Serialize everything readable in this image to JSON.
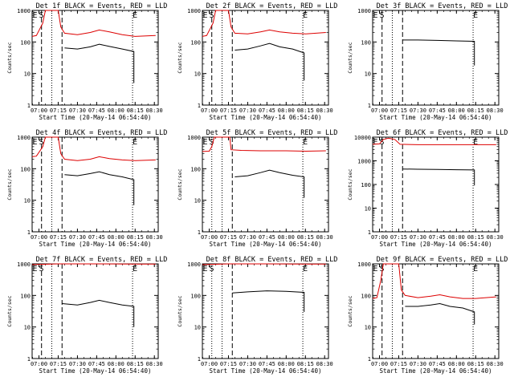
{
  "chart_data": {
    "type": "line",
    "y_scale": "log",
    "ylim": [
      1,
      1000
    ],
    "yticks": [
      "1",
      "10",
      "100",
      "1000"
    ],
    "ylabel": "Counts/sec",
    "xlabel": "Start Time (20-May-14 06:54:40)",
    "xlim": [
      "06:54:40",
      "08:33:00"
    ],
    "xticks": [
      "07:00",
      "07:15",
      "07:30",
      "07:45",
      "08:00",
      "08:15",
      "08:30"
    ],
    "colors": {
      "events": "#000000",
      "lld": "#dd0000"
    },
    "panels": [
      {
        "title": "Det 1f BLACK = Events, RED = LLD",
        "ytop": "1000",
        "vlines": [
          {
            "t": "07:02",
            "s": "dash"
          },
          {
            "t": "07:10",
            "s": "dot"
          },
          {
            "t": "07:18",
            "s": "dash"
          },
          {
            "t": "08:13",
            "s": "dot"
          }
        ],
        "marks": [
          {
            "t": "06:55",
            "text": "E"
          },
          {
            "t": "07:00",
            "text": "S"
          },
          {
            "t": "08:13",
            "text": "E"
          }
        ],
        "events": [
          [
            "07:20",
            65
          ],
          [
            "07:30",
            60
          ],
          [
            "07:40",
            70
          ],
          [
            "07:47",
            85
          ],
          [
            "07:55",
            72
          ],
          [
            "08:05",
            60
          ],
          [
            "08:14",
            50
          ],
          [
            "08:14",
            5
          ]
        ],
        "lld": [
          [
            "06:54:40",
            150
          ],
          [
            "06:58",
            160
          ],
          [
            "07:03",
            400
          ],
          [
            "07:05",
            1500
          ],
          [
            "07:15",
            1500
          ],
          [
            "07:17",
            300
          ],
          [
            "07:20",
            190
          ],
          [
            "07:30",
            170
          ],
          [
            "07:40",
            200
          ],
          [
            "07:47",
            240
          ],
          [
            "07:55",
            210
          ],
          [
            "08:05",
            170
          ],
          [
            "08:15",
            150
          ],
          [
            "08:31",
            160
          ]
        ]
      },
      {
        "title": "Det 2f BLACK = Events, RED = LLD",
        "ytop": "1000",
        "vlines": [
          {
            "t": "07:02",
            "s": "dash"
          },
          {
            "t": "07:10",
            "s": "dot"
          },
          {
            "t": "07:18",
            "s": "dash"
          },
          {
            "t": "08:13",
            "s": "dot"
          }
        ],
        "marks": [
          {
            "t": "06:55",
            "text": "E"
          },
          {
            "t": "07:00",
            "text": "S"
          },
          {
            "t": "08:13",
            "text": "E"
          }
        ],
        "events": [
          [
            "07:20",
            55
          ],
          [
            "07:30",
            60
          ],
          [
            "07:40",
            75
          ],
          [
            "07:47",
            90
          ],
          [
            "07:55",
            70
          ],
          [
            "08:05",
            60
          ],
          [
            "08:14",
            45
          ],
          [
            "08:14",
            6
          ]
        ],
        "lld": [
          [
            "06:54:40",
            150
          ],
          [
            "06:58",
            160
          ],
          [
            "07:03",
            400
          ],
          [
            "07:05",
            1500
          ],
          [
            "07:15",
            1500
          ],
          [
            "07:17",
            300
          ],
          [
            "07:20",
            190
          ],
          [
            "07:30",
            180
          ],
          [
            "07:40",
            210
          ],
          [
            "07:47",
            240
          ],
          [
            "07:55",
            210
          ],
          [
            "08:05",
            190
          ],
          [
            "08:15",
            180
          ],
          [
            "08:31",
            200
          ]
        ]
      },
      {
        "title": "Det 3f BLACK = Events, RED = LLD",
        "ytop": "1000",
        "vlines": [
          {
            "t": "07:02",
            "s": "dash"
          },
          {
            "t": "07:10",
            "s": "dot"
          },
          {
            "t": "07:18",
            "s": "dash"
          },
          {
            "t": "08:13",
            "s": "dot"
          }
        ],
        "marks": [
          {
            "t": "06:55",
            "text": "E"
          },
          {
            "t": "07:00",
            "text": "S"
          },
          {
            "t": "08:13",
            "text": "E"
          }
        ],
        "events": [
          [
            "07:18",
            115
          ],
          [
            "07:30",
            115
          ],
          [
            "07:45",
            112
          ],
          [
            "08:00",
            108
          ],
          [
            "08:14",
            105
          ],
          [
            "08:14",
            18
          ]
        ],
        "lld": []
      },
      {
        "title": "Det 4f BLACK = Events, RED = LLD",
        "ytop": "1000",
        "vlines": [
          {
            "t": "07:02",
            "s": "dash"
          },
          {
            "t": "07:10",
            "s": "dot"
          },
          {
            "t": "07:18",
            "s": "dash"
          },
          {
            "t": "08:13",
            "s": "dot"
          }
        ],
        "marks": [
          {
            "t": "06:55",
            "text": "E"
          },
          {
            "t": "07:00",
            "text": "S"
          },
          {
            "t": "08:13",
            "text": "E"
          }
        ],
        "events": [
          [
            "07:20",
            65
          ],
          [
            "07:30",
            60
          ],
          [
            "07:40",
            70
          ],
          [
            "07:47",
            80
          ],
          [
            "07:55",
            65
          ],
          [
            "08:05",
            55
          ],
          [
            "08:14",
            45
          ],
          [
            "08:14",
            7
          ]
        ],
        "lld": [
          [
            "06:54:40",
            240
          ],
          [
            "06:58",
            250
          ],
          [
            "07:03",
            500
          ],
          [
            "07:05",
            1500
          ],
          [
            "07:15",
            1500
          ],
          [
            "07:17",
            300
          ],
          [
            "07:20",
            200
          ],
          [
            "07:30",
            180
          ],
          [
            "07:40",
            200
          ],
          [
            "07:47",
            240
          ],
          [
            "07:55",
            210
          ],
          [
            "08:05",
            190
          ],
          [
            "08:15",
            180
          ],
          [
            "08:31",
            190
          ]
        ]
      },
      {
        "title": "Det 5f BLACK = Events, RED = LLD",
        "ytop": "1000",
        "vlines": [
          {
            "t": "07:02",
            "s": "dot"
          },
          {
            "t": "07:10",
            "s": "dot"
          },
          {
            "t": "07:18",
            "s": "dash"
          },
          {
            "t": "08:13",
            "s": "dot"
          }
        ],
        "marks": [
          {
            "t": "06:55",
            "text": "E"
          },
          {
            "t": "07:00",
            "text": "S"
          },
          {
            "t": "08:13",
            "text": "E"
          }
        ],
        "events": [
          [
            "07:20",
            55
          ],
          [
            "07:30",
            60
          ],
          [
            "07:40",
            75
          ],
          [
            "07:47",
            90
          ],
          [
            "07:55",
            75
          ],
          [
            "08:05",
            62
          ],
          [
            "08:14",
            55
          ],
          [
            "08:14",
            12
          ]
        ],
        "lld": [
          [
            "06:54:40",
            350
          ],
          [
            "07:00",
            360
          ],
          [
            "07:02",
            500
          ],
          [
            "07:04",
            1500
          ],
          [
            "07:16",
            1500
          ],
          [
            "07:17",
            400
          ],
          [
            "07:25",
            380
          ],
          [
            "07:40",
            370
          ],
          [
            "08:00",
            370
          ],
          [
            "08:15",
            360
          ],
          [
            "08:31",
            370
          ]
        ]
      },
      {
        "title": "Det 6f BLACK = Events, RED = LLD",
        "ytop": "10000",
        "vlines": [
          {
            "t": "07:02",
            "s": "dash"
          },
          {
            "t": "07:10",
            "s": "dot"
          },
          {
            "t": "07:18",
            "s": "dash"
          },
          {
            "t": "08:13",
            "s": "dot"
          }
        ],
        "marks": [
          {
            "t": "06:55",
            "text": "E"
          },
          {
            "t": "07:00",
            "text": "S"
          },
          {
            "t": "08:13",
            "text": "E"
          }
        ],
        "events": [
          [
            "07:18",
            450
          ],
          [
            "07:30",
            440
          ],
          [
            "07:45",
            430
          ],
          [
            "08:00",
            420
          ],
          [
            "08:14",
            410
          ],
          [
            "08:14",
            90
          ]
        ],
        "lld": [
          [
            "06:54:40",
            5000
          ],
          [
            "07:00",
            5200
          ],
          [
            "07:03",
            8000
          ],
          [
            "07:07",
            9000
          ],
          [
            "07:12",
            8000
          ],
          [
            "07:16",
            5000
          ],
          [
            "07:30",
            4800
          ],
          [
            "08:00",
            4800
          ],
          [
            "08:31",
            4800
          ]
        ]
      },
      {
        "title": "Det 7f BLACK = Events, RED = LLD",
        "ytop": "1000",
        "vlines": [
          {
            "t": "07:02",
            "s": "dash"
          },
          {
            "t": "07:10",
            "s": "dot"
          },
          {
            "t": "07:18",
            "s": "dash"
          },
          {
            "t": "08:13",
            "s": "dot"
          }
        ],
        "marks": [
          {
            "t": "06:55",
            "text": "E"
          },
          {
            "t": "07:00",
            "text": "S"
          },
          {
            "t": "08:13",
            "text": "E"
          }
        ],
        "events": [
          [
            "07:18",
            55
          ],
          [
            "07:30",
            50
          ],
          [
            "07:40",
            60
          ],
          [
            "07:47",
            70
          ],
          [
            "07:55",
            60
          ],
          [
            "08:05",
            50
          ],
          [
            "08:14",
            45
          ],
          [
            "08:14",
            10
          ]
        ],
        "lld": [
          [
            "06:54:40",
            950
          ],
          [
            "07:15",
            1000
          ],
          [
            "07:45",
            1000
          ],
          [
            "08:15",
            980
          ],
          [
            "08:31",
            990
          ]
        ]
      },
      {
        "title": "Det 8f BLACK = Events, RED = LLD",
        "ytop": "1000",
        "vlines": [
          {
            "t": "07:02",
            "s": "dot"
          },
          {
            "t": "07:10",
            "s": "dot"
          },
          {
            "t": "07:18",
            "s": "dash"
          },
          {
            "t": "08:13",
            "s": "dot"
          }
        ],
        "marks": [
          {
            "t": "06:55",
            "text": "E"
          },
          {
            "t": "07:00",
            "text": "S"
          },
          {
            "t": "08:13",
            "text": "E"
          }
        ],
        "events": [
          [
            "07:18",
            120
          ],
          [
            "07:30",
            130
          ],
          [
            "07:45",
            140
          ],
          [
            "08:00",
            135
          ],
          [
            "08:14",
            125
          ],
          [
            "08:14",
            30
          ]
        ],
        "lld": [
          [
            "06:54:40",
            950
          ],
          [
            "07:15",
            1000
          ],
          [
            "07:45",
            1000
          ],
          [
            "08:15",
            980
          ],
          [
            "08:31",
            990
          ]
        ]
      },
      {
        "title": "Det 9f BLACK = Events, RED = LLD",
        "ytop": "1000",
        "vlines": [
          {
            "t": "07:02",
            "s": "dash"
          },
          {
            "t": "07:10",
            "s": "dot"
          },
          {
            "t": "07:18",
            "s": "dash"
          },
          {
            "t": "08:13",
            "s": "dot"
          }
        ],
        "marks": [
          {
            "t": "06:55",
            "text": "E"
          },
          {
            "t": "07:00",
            "text": "S"
          },
          {
            "t": "08:13",
            "text": "E"
          }
        ],
        "events": [
          [
            "07:20",
            45
          ],
          [
            "07:30",
            45
          ],
          [
            "07:40",
            50
          ],
          [
            "07:47",
            55
          ],
          [
            "07:55",
            45
          ],
          [
            "08:05",
            40
          ],
          [
            "08:14",
            30
          ],
          [
            "08:14",
            12
          ]
        ],
        "lld": [
          [
            "06:54:40",
            80
          ],
          [
            "06:58",
            85
          ],
          [
            "07:01",
            300
          ],
          [
            "07:03",
            1500
          ],
          [
            "07:15",
            1500
          ],
          [
            "07:17",
            150
          ],
          [
            "07:20",
            100
          ],
          [
            "07:30",
            85
          ],
          [
            "07:40",
            95
          ],
          [
            "07:47",
            105
          ],
          [
            "07:55",
            90
          ],
          [
            "08:05",
            80
          ],
          [
            "08:15",
            80
          ],
          [
            "08:31",
            90
          ]
        ]
      }
    ]
  }
}
